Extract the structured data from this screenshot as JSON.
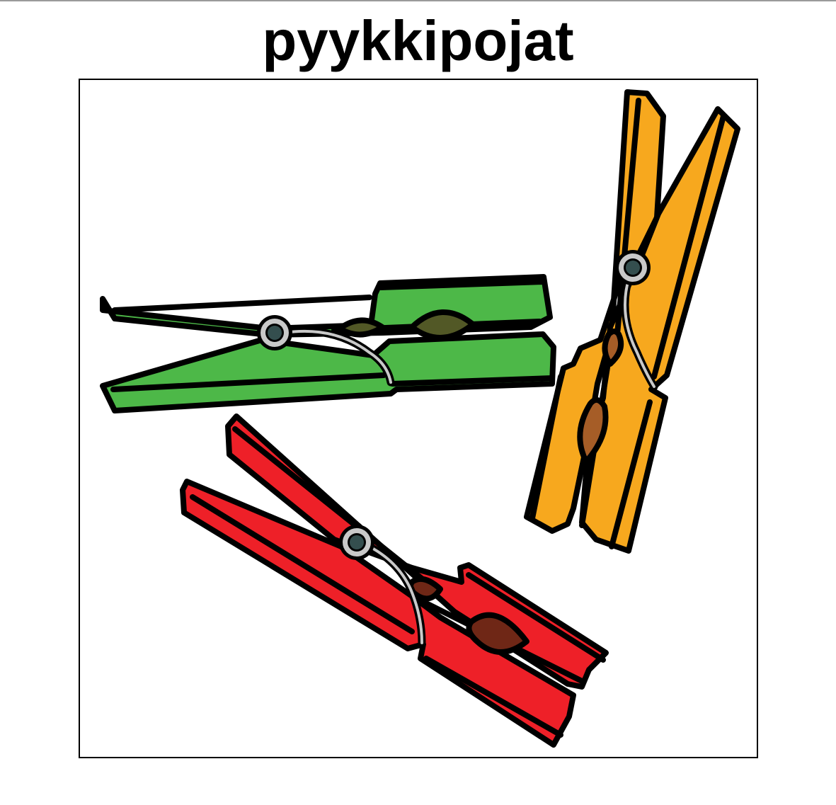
{
  "card": {
    "title": "pyykkipojat",
    "icon_name": "clothespins-icon"
  },
  "illustration": {
    "items": [
      {
        "name": "green-clothespin",
        "color": "#4db848",
        "seed_color": "#525826"
      },
      {
        "name": "orange-clothespin",
        "color": "#f7a81e",
        "seed_color": "#a65d27"
      },
      {
        "name": "red-clothespin",
        "color": "#ee2028",
        "seed_color": "#6f2716"
      }
    ],
    "outline_color": "#000000",
    "spring_color": "#c9c9c9",
    "pivot_color": "#344e4e"
  }
}
